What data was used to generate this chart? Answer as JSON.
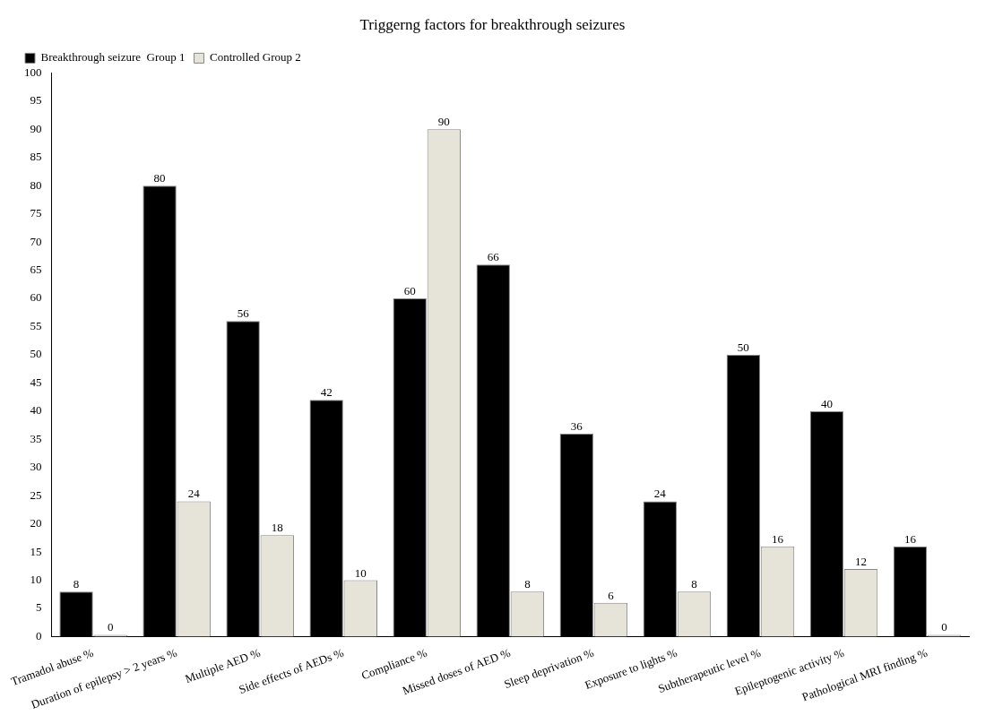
{
  "chart_data": {
    "type": "bar",
    "title": "Triggerng factors for breakthrough seizures",
    "categories": [
      "Tramadol abuse %",
      "Duration of epilepsy > 2 years %",
      "Multiple AED %",
      "Side effects of AEDs %",
      "Compliance %",
      "Missed doses of AED %",
      "Sleep deprivation %",
      "Exposure to lights %",
      "Subtherapeutic level %",
      "Epileptogenic activity %",
      "Pathological MRI finding %"
    ],
    "series": [
      {
        "name": "Breakthrough seizure  Group 1",
        "color": "#000000",
        "values": [
          8,
          80,
          56,
          42,
          60,
          66,
          36,
          24,
          50,
          40,
          16
        ]
      },
      {
        "name": "Controlled Group 2",
        "color": "#e6e4d8",
        "values": [
          0,
          24,
          18,
          10,
          90,
          8,
          6,
          8,
          16,
          12,
          0
        ]
      }
    ],
    "ylim": [
      0,
      100
    ],
    "yticks": [
      0,
      5,
      10,
      15,
      20,
      25,
      30,
      35,
      40,
      45,
      50,
      55,
      60,
      65,
      70,
      75,
      80,
      85,
      90,
      95,
      100
    ],
    "grid": false,
    "legend": "top left",
    "data_labels": true
  }
}
